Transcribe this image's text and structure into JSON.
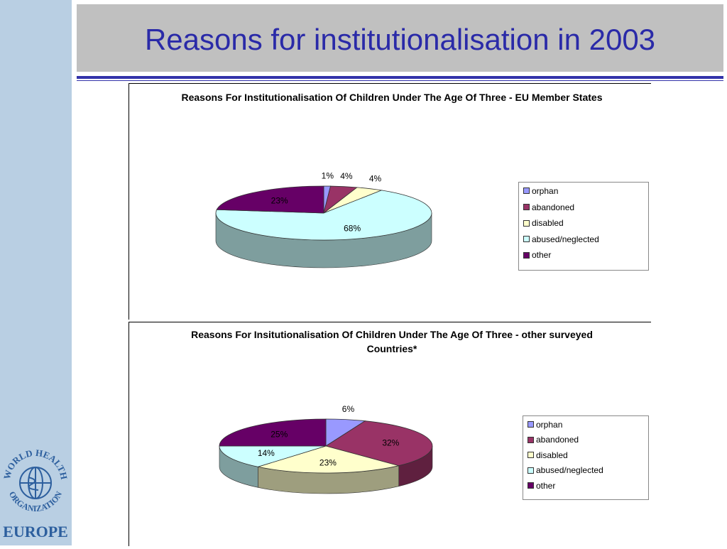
{
  "slide": {
    "title": "Reasons for institutionalisation in 2003"
  },
  "logo": {
    "text_top": "WORLD HEALTH",
    "text_bottom": "ORGANIZATION",
    "region": "EUROPE",
    "color": "#2d5f9e"
  },
  "chart_data": [
    {
      "type": "pie",
      "title": "Reasons For Institutionalisation Of Children Under The Age Of Three - EU Member States",
      "categories": [
        "orphan",
        "abandoned",
        "disabled",
        "abused/neglected",
        "other"
      ],
      "values": [
        1,
        4,
        4,
        68,
        23
      ],
      "labels": [
        "1%",
        "4%",
        "4%",
        "68%",
        "23%"
      ],
      "colors": [
        "#9999ff",
        "#993366",
        "#ffffcc",
        "#ccffff",
        "#660066"
      ],
      "legend_position": "right"
    },
    {
      "type": "pie",
      "title": "Reasons For Insitutionalisation Of Children Under The Age Of Three - other surveyed Countries*",
      "categories": [
        "orphan",
        "abandoned",
        "disabled",
        "abused/neglected",
        "other"
      ],
      "values": [
        6,
        32,
        23,
        14,
        25
      ],
      "labels": [
        "6%",
        "32%",
        "23%",
        "14%",
        "25%"
      ],
      "colors": [
        "#9999ff",
        "#993366",
        "#ffffcc",
        "#ccffff",
        "#660066"
      ],
      "legend_position": "right"
    }
  ]
}
